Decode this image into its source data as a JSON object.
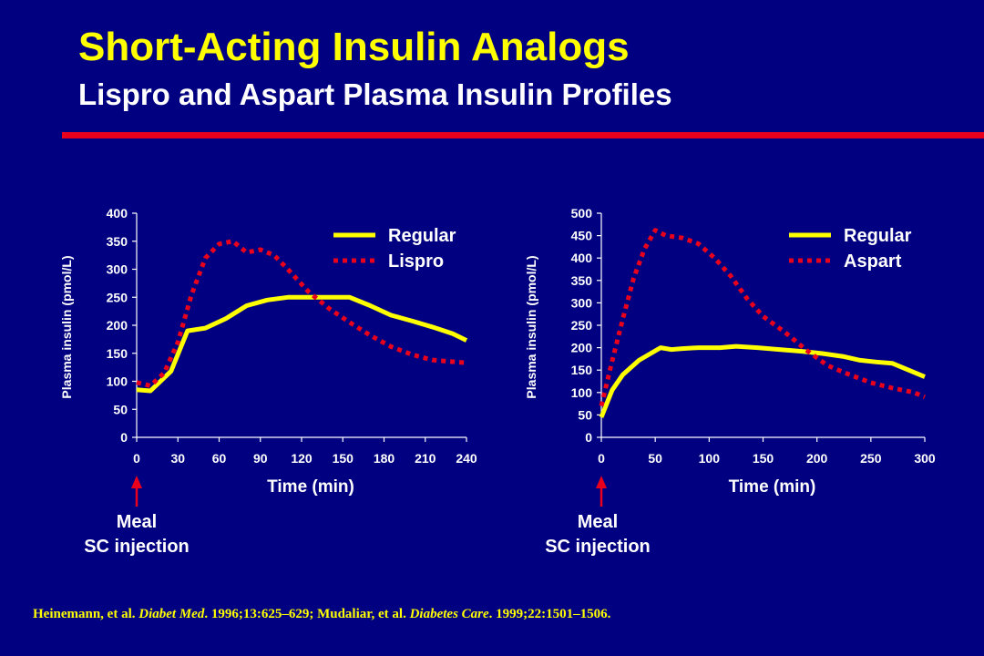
{
  "slide": {
    "title": "Short-Acting Insulin Analogs",
    "subtitle": "Lispro and Aspart Plasma Insulin Profiles",
    "accent_color": "#e8001c",
    "background_color": "#000080"
  },
  "meal_label": [
    "Meal",
    "SC injection"
  ],
  "citation": {
    "part1": "Heinemann, et al. ",
    "journal1": "Diabet Med",
    "part2": ". 1996;13:625–629; Mudaliar, et al. ",
    "journal2": "Diabetes Care",
    "part3": ". 1999;22:1501–1506."
  },
  "chart_data": [
    {
      "type": "line",
      "xlabel": "Time (min)",
      "ylabel": "Plasma insulin (pmol/L)",
      "xlim": [
        0,
        240
      ],
      "ylim": [
        0,
        400
      ],
      "xticks": [
        0,
        30,
        60,
        90,
        120,
        150,
        180,
        210,
        240
      ],
      "yticks": [
        0,
        50,
        100,
        150,
        200,
        250,
        300,
        350,
        400
      ],
      "legend_position": "top-right",
      "grid": false,
      "series": [
        {
          "name": "Regular",
          "style": "solid",
          "color": "#ffff00",
          "x": [
            0,
            10,
            25,
            37,
            50,
            65,
            80,
            95,
            110,
            125,
            140,
            155,
            170,
            185,
            200,
            215,
            230,
            240
          ],
          "y": [
            85,
            83,
            118,
            190,
            195,
            212,
            235,
            245,
            250,
            250,
            250,
            250,
            235,
            218,
            208,
            197,
            185,
            173
          ]
        },
        {
          "name": "Lispro",
          "style": "dotted",
          "color": "#e8001c",
          "x": [
            0,
            10,
            20,
            30,
            40,
            50,
            60,
            70,
            80,
            90,
            100,
            110,
            125,
            140,
            155,
            170,
            185,
            200,
            215,
            230,
            240
          ],
          "y": [
            98,
            92,
            115,
            170,
            255,
            320,
            345,
            350,
            330,
            335,
            325,
            300,
            260,
            230,
            205,
            182,
            162,
            148,
            138,
            135,
            133
          ]
        }
      ]
    },
    {
      "type": "line",
      "xlabel": "Time (min)",
      "ylabel": "Plasma insulin (pmol/L)",
      "xlim": [
        0,
        300
      ],
      "ylim": [
        0,
        500
      ],
      "xticks": [
        0,
        50,
        100,
        150,
        200,
        250,
        300
      ],
      "yticks": [
        0,
        50,
        100,
        150,
        200,
        250,
        300,
        350,
        400,
        450,
        500
      ],
      "legend_position": "top-right",
      "grid": false,
      "series": [
        {
          "name": "Regular",
          "style": "solid",
          "color": "#ffff00",
          "x": [
            0,
            10,
            20,
            35,
            55,
            65,
            75,
            90,
            110,
            125,
            145,
            165,
            185,
            205,
            225,
            240,
            255,
            270,
            285,
            300
          ],
          "y": [
            45,
            105,
            140,
            172,
            200,
            196,
            198,
            200,
            200,
            203,
            200,
            196,
            192,
            187,
            180,
            172,
            168,
            165,
            150,
            135
          ]
        },
        {
          "name": "Aspart",
          "style": "dotted",
          "color": "#e8001c",
          "x": [
            0,
            10,
            20,
            30,
            40,
            50,
            60,
            75,
            90,
            105,
            120,
            135,
            150,
            170,
            190,
            210,
            230,
            250,
            270,
            290,
            300
          ],
          "y": [
            70,
            170,
            265,
            355,
            420,
            462,
            450,
            445,
            432,
            400,
            360,
            310,
            270,
            235,
            195,
            160,
            140,
            122,
            110,
            100,
            90
          ]
        }
      ]
    }
  ]
}
